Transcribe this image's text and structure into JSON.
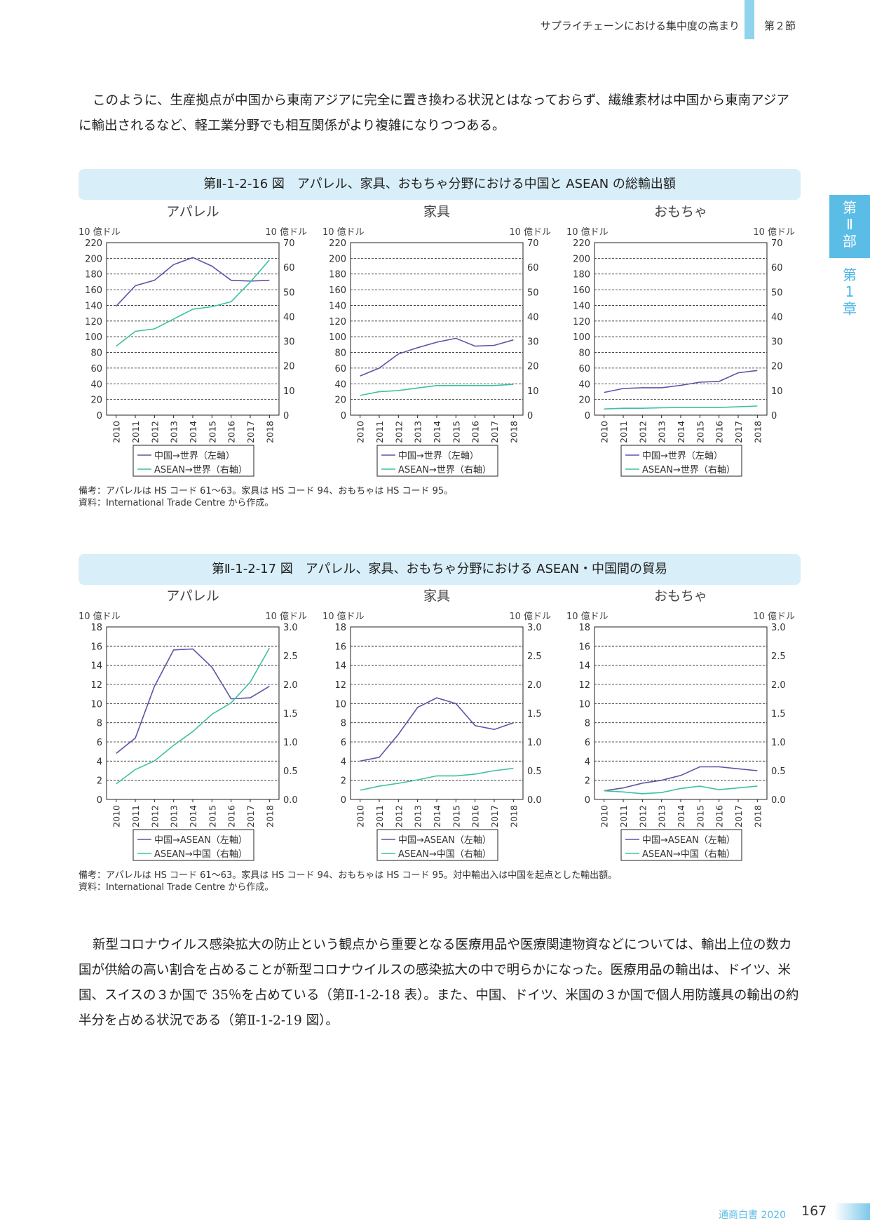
{
  "header": {
    "title": "サプライチェーンにおける集中度の高まり",
    "section": "第２節"
  },
  "side_tab": {
    "part": [
      "第",
      "Ⅱ",
      "部"
    ],
    "chapter": [
      "第",
      "1",
      "章"
    ]
  },
  "intro": {
    "text": "このように、生産拠点が中国から東南アジアに完全に置き換わる状況とはなっておらず、繊維素材は中国から東南アジアに輸出されるなど、軽工業分野でも相互関係がより複雑になりつつある。"
  },
  "figure16": {
    "title": "第Ⅱ-1-2-16 図　アパレル、家具、おもちゃ分野における中国と ASEAN の総輸出額",
    "note": "備考：アパレルは HS コード 61〜63。家具は HS コード 94、おもちゃは HS コード 95。",
    "source": "資料：International Trade Centre から作成。"
  },
  "figure17": {
    "title": "第Ⅱ-1-2-17 図　アパレル、家具、おもちゃ分野における ASEAN・中国間の貿易",
    "note": "備考：アパレルは HS コード 61〜63。家具は HS コード 94、おもちゃは HS コード 95。対中輸出入は中国を起点とした輸出額。",
    "source": "資料：International Trade Centre から作成。"
  },
  "body": {
    "paragraph": "新型コロナウイルス感染拡大の防止という観点から重要となる医療用品や医療関連物資などについては、輸出上位の数カ国が供給の高い割合を占めることが新型コロナウイルスの感染拡大の中で明らかになった。医療用品の輸出は、ドイツ、米国、スイスの３か国で 35％を占めている（第Ⅱ-1-2-18 表）。また、中国、ドイツ、米国の３か国で個人用防護具の輸出の約半分を占める状況である（第Ⅱ-1-2-19 図）。"
  },
  "footer": {
    "publication": "通商白書 2020",
    "page": "167"
  },
  "colors": {
    "china": "#5b55a8",
    "asean": "#3fc0a2",
    "accent": "#5bbde6"
  },
  "chart_data": [
    {
      "type": "line",
      "title": "アパレル",
      "y_left_label": "10 億ドル",
      "y_right_label": "10 億ドル",
      "y_left_lim": [
        0,
        220
      ],
      "y_left_ticks": [
        "0",
        "20",
        "40",
        "60",
        "80",
        "100",
        "120",
        "140",
        "160",
        "180",
        "200",
        "220"
      ],
      "y_right_lim": [
        0,
        70
      ],
      "y_right_ticks": [
        "0",
        "10",
        "20",
        "30",
        "40",
        "50",
        "60",
        "70"
      ],
      "x": [
        "2010",
        "2011",
        "2012",
        "2013",
        "2014",
        "2015",
        "2016",
        "2017",
        "2018"
      ],
      "series": [
        {
          "name": "中国→世界（左軸）",
          "axis": "left",
          "color": "#5b55a8",
          "values": [
            139,
            165,
            172,
            192,
            201,
            190,
            172,
            171,
            172
          ]
        },
        {
          "name": "ASEAN→世界（右軸）",
          "axis": "right",
          "color": "#3fc0a2",
          "values": [
            28,
            34,
            35,
            39,
            43,
            44,
            46,
            54,
            63
          ]
        }
      ]
    },
    {
      "type": "line",
      "title": "家具",
      "y_left_label": "10 億ドル",
      "y_right_label": "10 億ドル",
      "y_left_lim": [
        0,
        220
      ],
      "y_left_ticks": [
        "0",
        "20",
        "40",
        "60",
        "80",
        "100",
        "120",
        "140",
        "160",
        "180",
        "200",
        "220"
      ],
      "y_right_lim": [
        0,
        70
      ],
      "y_right_ticks": [
        "0",
        "10",
        "20",
        "30",
        "40",
        "50",
        "60",
        "70"
      ],
      "x": [
        "2010",
        "2011",
        "2012",
        "2013",
        "2014",
        "2015",
        "2016",
        "2017",
        "2018"
      ],
      "series": [
        {
          "name": "中国→世界（左軸）",
          "axis": "left",
          "color": "#5b55a8",
          "values": [
            50,
            60,
            78,
            86,
            93,
            98,
            88,
            89,
            96
          ]
        },
        {
          "name": "ASEAN→世界（右軸）",
          "axis": "right",
          "color": "#3fc0a2",
          "values": [
            8,
            9.5,
            10,
            11,
            12,
            12,
            12,
            12,
            12.5
          ]
        }
      ]
    },
    {
      "type": "line",
      "title": "おもちゃ",
      "y_left_label": "10 億ドル",
      "y_right_label": "10 億ドル",
      "y_left_lim": [
        0,
        220
      ],
      "y_left_ticks": [
        "0",
        "20",
        "40",
        "60",
        "80",
        "100",
        "120",
        "140",
        "160",
        "180",
        "200",
        "220"
      ],
      "y_right_lim": [
        0,
        70
      ],
      "y_right_ticks": [
        "0",
        "10",
        "20",
        "30",
        "40",
        "50",
        "60",
        "70"
      ],
      "x": [
        "2010",
        "2011",
        "2012",
        "2013",
        "2014",
        "2015",
        "2016",
        "2017",
        "2018"
      ],
      "series": [
        {
          "name": "中国→世界（左軸）",
          "axis": "left",
          "color": "#5b55a8",
          "values": [
            29,
            34,
            35,
            35,
            38,
            42,
            43,
            54,
            57
          ]
        },
        {
          "name": "ASEAN→世界（右軸）",
          "axis": "right",
          "color": "#3fc0a2",
          "values": [
            2.5,
            2.8,
            2.8,
            3,
            3.1,
            3.1,
            3.1,
            3.4,
            3.7
          ]
        }
      ]
    },
    {
      "type": "line",
      "title": "アパレル",
      "y_left_label": "10 億ドル",
      "y_right_label": "10 億ドル",
      "y_left_lim": [
        0,
        18
      ],
      "y_left_ticks": [
        "0",
        "2",
        "4",
        "6",
        "8",
        "10",
        "12",
        "14",
        "16",
        "18"
      ],
      "y_right_lim": [
        0,
        3
      ],
      "y_right_ticks": [
        "0.0",
        "0.5",
        "1.0",
        "1.5",
        "2.0",
        "2.5",
        "3.0"
      ],
      "x": [
        "2010",
        "2011",
        "2012",
        "2013",
        "2014",
        "2015",
        "2016",
        "2017",
        "2018"
      ],
      "series": [
        {
          "name": "中国→ASEAN（左軸）",
          "axis": "left",
          "color": "#5b55a8",
          "values": [
            4.8,
            6.4,
            11.8,
            15.6,
            15.7,
            13.8,
            10.5,
            10.6,
            11.8
          ]
        },
        {
          "name": "ASEAN→中国（右軸）",
          "axis": "right",
          "color": "#3fc0a2",
          "values": [
            0.27,
            0.52,
            0.67,
            0.94,
            1.18,
            1.48,
            1.68,
            2.04,
            2.63
          ]
        }
      ]
    },
    {
      "type": "line",
      "title": "家具",
      "y_left_label": "10 億ドル",
      "y_right_label": "10 億ドル",
      "y_left_lim": [
        0,
        18
      ],
      "y_left_ticks": [
        "0",
        "2",
        "4",
        "6",
        "8",
        "10",
        "12",
        "14",
        "16",
        "18"
      ],
      "y_right_lim": [
        0,
        3
      ],
      "y_right_ticks": [
        "0.0",
        "0.5",
        "1.0",
        "1.5",
        "2.0",
        "2.5",
        "3.0"
      ],
      "x": [
        "2010",
        "2011",
        "2012",
        "2013",
        "2014",
        "2015",
        "2016",
        "2017",
        "2018"
      ],
      "series": [
        {
          "name": "中国→ASEAN（左軸）",
          "axis": "left",
          "color": "#5b55a8",
          "values": [
            4,
            4.4,
            6.8,
            9.6,
            10.6,
            10,
            7.7,
            7.3,
            8
          ]
        },
        {
          "name": "ASEAN→中国（右軸）",
          "axis": "right",
          "color": "#3fc0a2",
          "values": [
            0.16,
            0.23,
            0.28,
            0.34,
            0.41,
            0.41,
            0.44,
            0.5,
            0.54
          ]
        }
      ]
    },
    {
      "type": "line",
      "title": "おもちゃ",
      "y_left_label": "10 億ドル",
      "y_right_label": "10 億ドル",
      "y_left_lim": [
        0,
        18
      ],
      "y_left_ticks": [
        "0",
        "2",
        "4",
        "6",
        "8",
        "10",
        "12",
        "14",
        "16",
        "18"
      ],
      "y_right_lim": [
        0,
        3
      ],
      "y_right_ticks": [
        "0.0",
        "0.5",
        "1.0",
        "1.5",
        "2.0",
        "2.5",
        "3.0"
      ],
      "x": [
        "2010",
        "2011",
        "2012",
        "2013",
        "2014",
        "2015",
        "2016",
        "2017",
        "2018"
      ],
      "series": [
        {
          "name": "中国→ASEAN（左軸）",
          "axis": "left",
          "color": "#5b55a8",
          "values": [
            0.9,
            1.2,
            1.7,
            2,
            2.5,
            3.4,
            3.4,
            3.2,
            3
          ]
        },
        {
          "name": "ASEAN→中国（右軸）",
          "axis": "right",
          "color": "#3fc0a2",
          "values": [
            0.15,
            0.13,
            0.1,
            0.12,
            0.19,
            0.23,
            0.17,
            0.2,
            0.23
          ]
        }
      ]
    }
  ]
}
